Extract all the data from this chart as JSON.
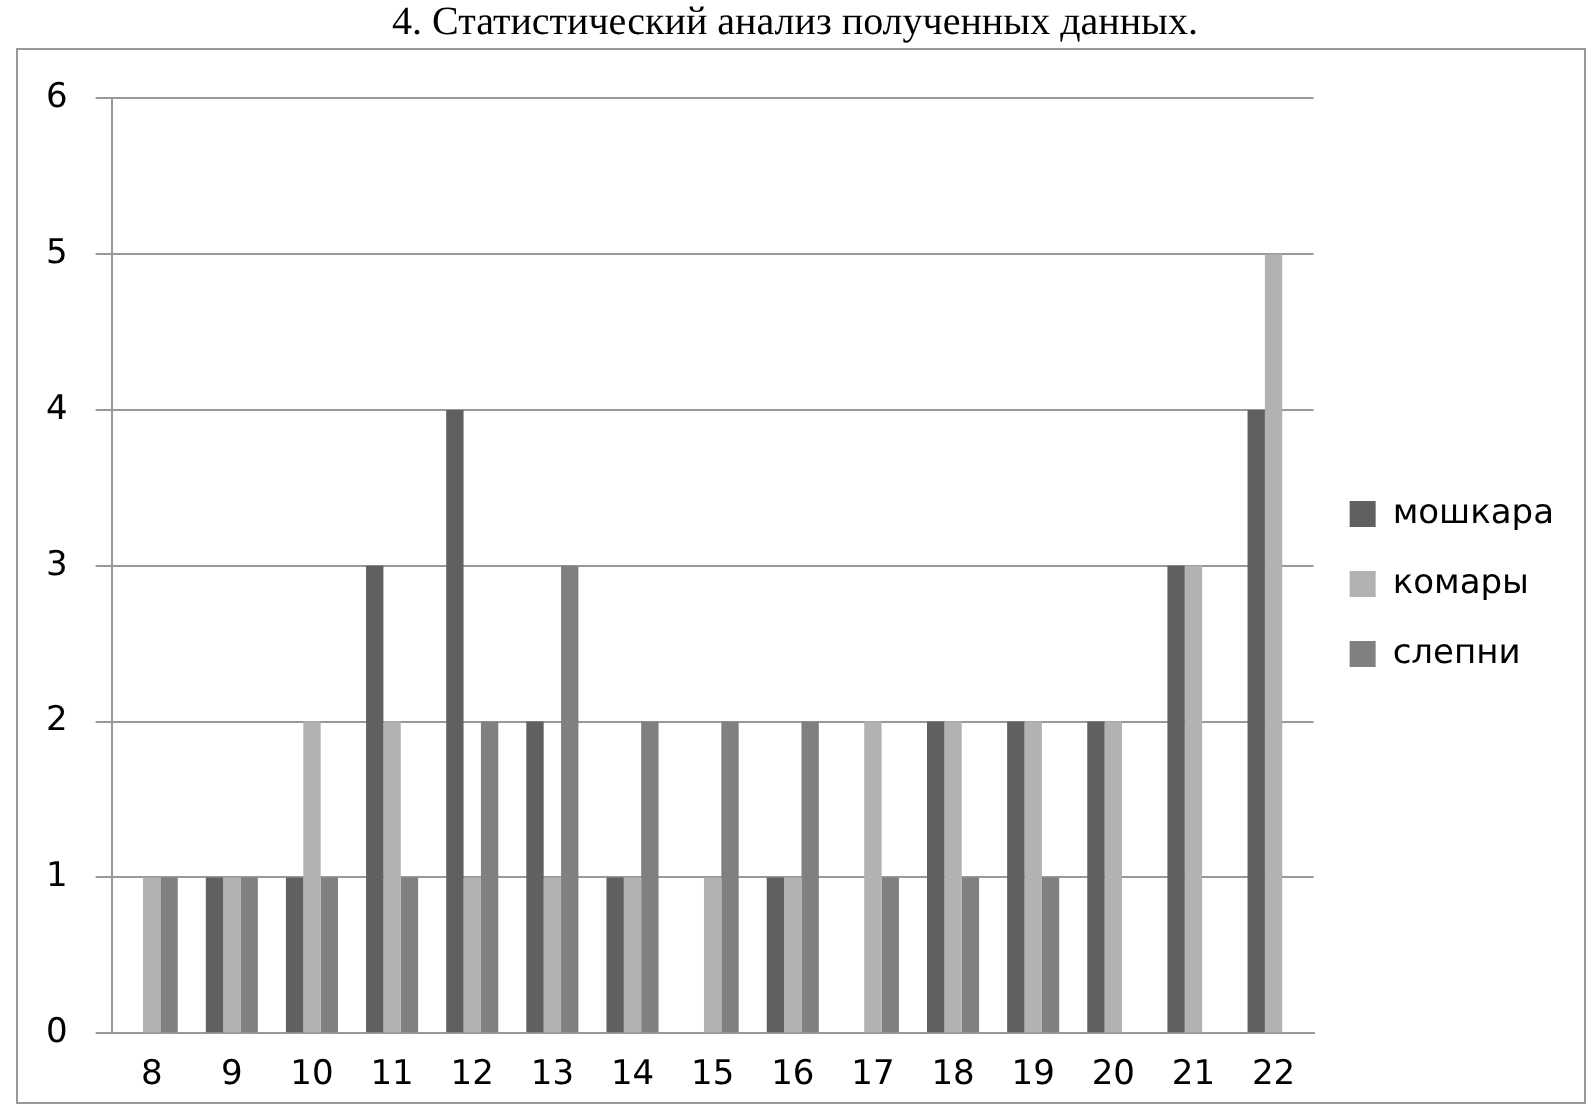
{
  "chart_data": {
    "type": "bar",
    "title": "4. Статистический анализ полученных данных.",
    "categories": [
      "8",
      "9",
      "10",
      "11",
      "12",
      "13",
      "14",
      "15",
      "16",
      "17",
      "18",
      "19",
      "20",
      "21",
      "22"
    ],
    "series": [
      {
        "name": "мошкара",
        "color": "#606060",
        "values": [
          0,
          1,
          1,
          3,
          4,
          2,
          1,
          0,
          1,
          0,
          2,
          2,
          2,
          3,
          4
        ]
      },
      {
        "name": "комары",
        "color": "#b2b2b2",
        "values": [
          1,
          1,
          2,
          2,
          1,
          1,
          1,
          1,
          1,
          2,
          2,
          2,
          2,
          3,
          5
        ]
      },
      {
        "name": "слепни",
        "color": "#808080",
        "values": [
          1,
          1,
          1,
          1,
          2,
          3,
          2,
          2,
          2,
          1,
          1,
          1,
          0,
          0,
          0
        ]
      }
    ],
    "ylim": [
      0,
      6
    ],
    "yticks": [
      0,
      1,
      2,
      3,
      4,
      5,
      6
    ],
    "grid": "y",
    "legend": "right"
  }
}
